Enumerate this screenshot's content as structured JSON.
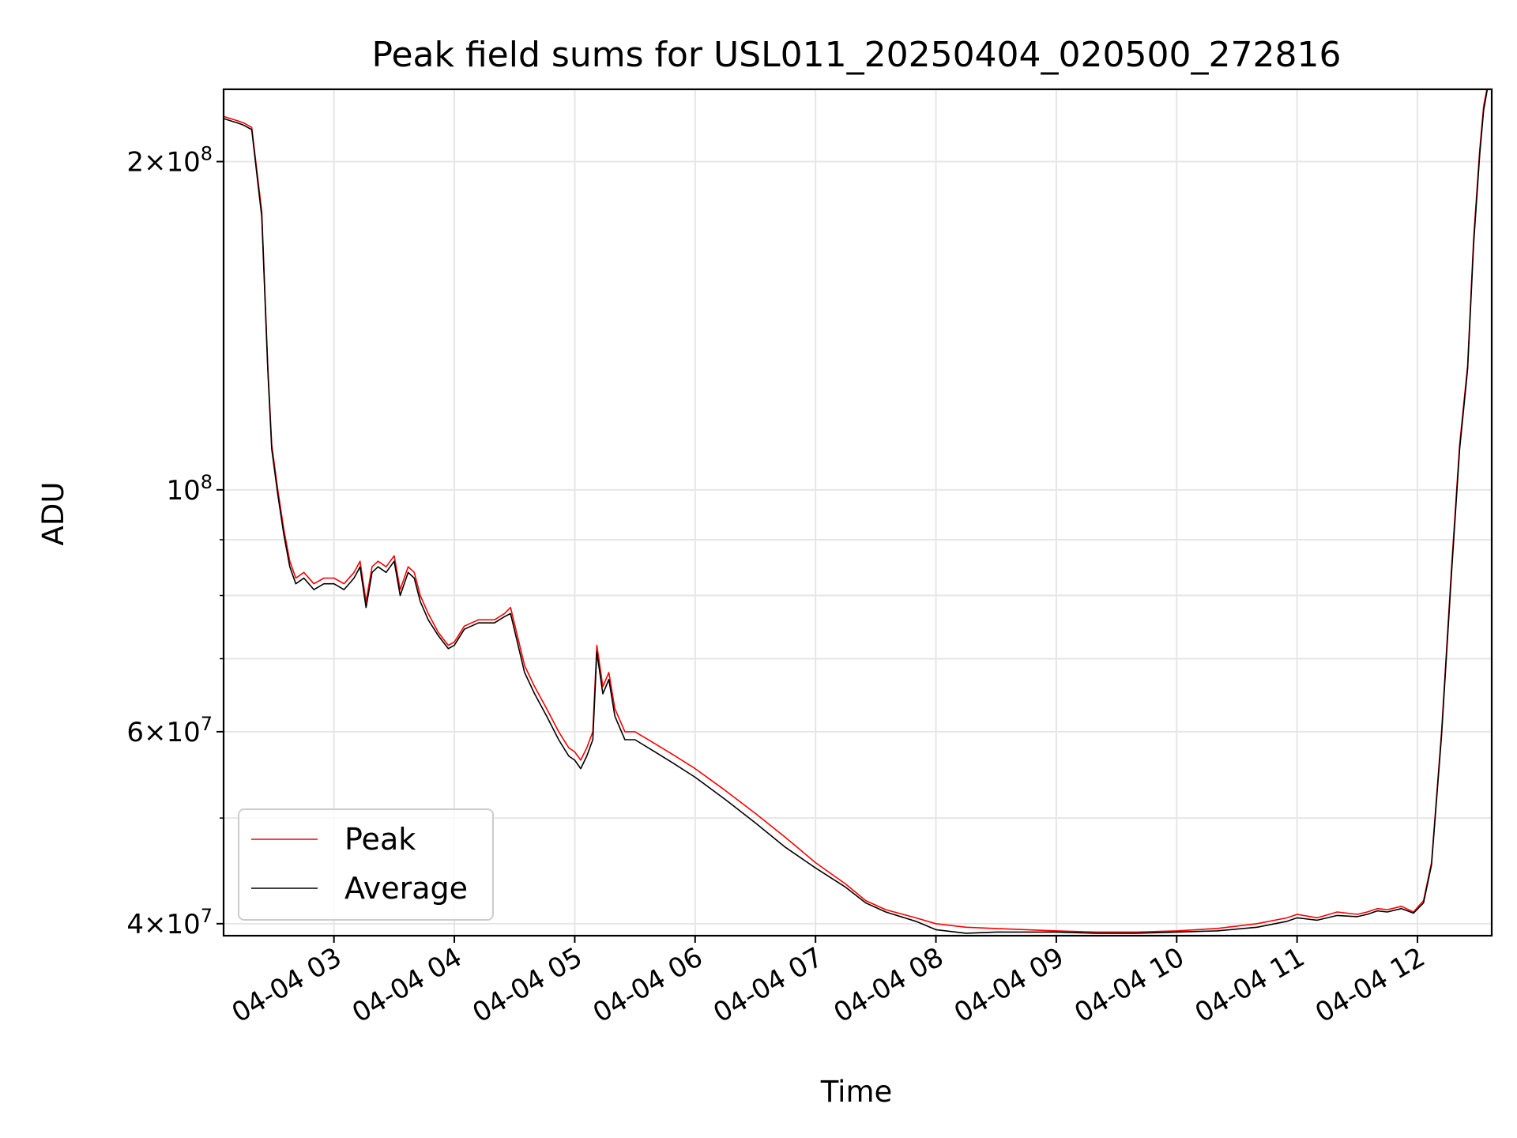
{
  "chart_data": {
    "type": "line",
    "title": "Peak field sums for USL011_20250404_020500_272816",
    "xlabel": "Time",
    "ylabel": "ADU",
    "yscale": "log",
    "grid": true,
    "legend_placement": "lower-left",
    "xlim": [
      "2025-04-04 02:05",
      "2025-04-04 12:37"
    ],
    "ylim": [
      39000000,
      233000000
    ],
    "x_ticks": [
      {
        "t": "2025-04-04 03:00",
        "label": "04-04 03"
      },
      {
        "t": "2025-04-04 04:00",
        "label": "04-04 04"
      },
      {
        "t": "2025-04-04 05:00",
        "label": "04-04 05"
      },
      {
        "t": "2025-04-04 06:00",
        "label": "04-04 06"
      },
      {
        "t": "2025-04-04 07:00",
        "label": "04-04 07"
      },
      {
        "t": "2025-04-04 08:00",
        "label": "04-04 08"
      },
      {
        "t": "2025-04-04 09:00",
        "label": "04-04 09"
      },
      {
        "t": "2025-04-04 10:00",
        "label": "04-04 10"
      },
      {
        "t": "2025-04-04 11:00",
        "label": "04-04 11"
      },
      {
        "t": "2025-04-04 12:00",
        "label": "04-04 12"
      }
    ],
    "y_ticks": [
      {
        "v": 40000000,
        "mant": "4",
        "exp": "7"
      },
      {
        "v": 60000000,
        "mant": "6",
        "exp": "7"
      },
      {
        "v": 100000000,
        "mant": "",
        "exp": "8"
      },
      {
        "v": 200000000,
        "mant": "2",
        "exp": "8"
      }
    ],
    "y_minor_ticks": [
      50000000,
      70000000,
      80000000,
      90000000
    ],
    "series": [
      {
        "name": "Peak",
        "color": "#ff0000",
        "x": [
          "2025-04-04 02:05",
          "2025-04-04 02:12",
          "2025-04-04 02:15",
          "2025-04-04 02:19",
          "2025-04-04 02:24",
          "2025-04-04 02:27",
          "2025-04-04 02:29",
          "2025-04-04 02:32",
          "2025-04-04 02:35",
          "2025-04-04 02:38",
          "2025-04-04 02:41",
          "2025-04-04 02:45",
          "2025-04-04 02:50",
          "2025-04-04 02:55",
          "2025-04-04 03:00",
          "2025-04-04 03:05",
          "2025-04-04 03:10",
          "2025-04-04 03:13",
          "2025-04-04 03:16",
          "2025-04-04 03:19",
          "2025-04-04 03:22",
          "2025-04-04 03:26",
          "2025-04-04 03:30",
          "2025-04-04 03:33",
          "2025-04-04 03:37",
          "2025-04-04 03:40",
          "2025-04-04 03:43",
          "2025-04-04 03:47",
          "2025-04-04 03:52",
          "2025-04-04 03:57",
          "2025-04-04 04:00",
          "2025-04-04 04:05",
          "2025-04-04 04:12",
          "2025-04-04 04:20",
          "2025-04-04 04:25",
          "2025-04-04 04:28",
          "2025-04-04 04:31",
          "2025-04-04 04:35",
          "2025-04-04 04:40",
          "2025-04-04 04:46",
          "2025-04-04 04:52",
          "2025-04-04 04:57",
          "2025-04-04 05:00",
          "2025-04-04 05:03",
          "2025-04-04 05:06",
          "2025-04-04 05:09",
          "2025-04-04 05:11",
          "2025-04-04 05:14",
          "2025-04-04 05:17",
          "2025-04-04 05:20",
          "2025-04-04 05:25",
          "2025-04-04 05:30",
          "2025-04-04 05:40",
          "2025-04-04 05:50",
          "2025-04-04 06:00",
          "2025-04-04 06:15",
          "2025-04-04 06:30",
          "2025-04-04 06:45",
          "2025-04-04 07:00",
          "2025-04-04 07:15",
          "2025-04-04 07:25",
          "2025-04-04 07:35",
          "2025-04-04 07:50",
          "2025-04-04 08:00",
          "2025-04-04 08:15",
          "2025-04-04 08:30",
          "2025-04-04 08:45",
          "2025-04-04 09:00",
          "2025-04-04 09:20",
          "2025-04-04 09:40",
          "2025-04-04 10:00",
          "2025-04-04 10:20",
          "2025-04-04 10:40",
          "2025-04-04 10:55",
          "2025-04-04 11:00",
          "2025-04-04 11:10",
          "2025-04-04 11:20",
          "2025-04-04 11:30",
          "2025-04-04 11:35",
          "2025-04-04 11:40",
          "2025-04-04 11:45",
          "2025-04-04 11:52",
          "2025-04-04 11:58",
          "2025-04-04 12:03",
          "2025-04-04 12:07",
          "2025-04-04 12:12",
          "2025-04-04 12:17",
          "2025-04-04 12:21",
          "2025-04-04 12:25",
          "2025-04-04 12:28",
          "2025-04-04 12:31",
          "2025-04-04 12:33",
          "2025-04-04 12:35"
        ],
        "values": [
          220000000,
          218000000,
          217000000,
          215000000,
          180000000,
          130000000,
          110000000,
          100000000,
          92000000,
          86000000,
          83000000,
          84000000,
          82000000,
          83000000,
          83000000,
          82000000,
          84000000,
          86000000,
          79000000,
          85000000,
          86000000,
          85000000,
          87000000,
          81000000,
          85000000,
          84000000,
          80000000,
          77000000,
          74000000,
          72000000,
          72500000,
          75000000,
          76000000,
          76000000,
          77000000,
          78000000,
          74000000,
          69000000,
          66000000,
          63000000,
          60000000,
          58000000,
          57500000,
          56500000,
          58000000,
          60000000,
          72000000,
          66000000,
          68000000,
          63000000,
          60000000,
          60000000,
          58500000,
          57000000,
          55500000,
          53000000,
          50500000,
          48000000,
          45500000,
          43500000,
          42000000,
          41200000,
          40500000,
          40000000,
          39700000,
          39600000,
          39500000,
          39400000,
          39300000,
          39300000,
          39400000,
          39600000,
          40000000,
          40500000,
          40800000,
          40500000,
          41000000,
          40800000,
          41000000,
          41300000,
          41200000,
          41500000,
          41000000,
          42000000,
          45500000,
          60000000,
          85000000,
          110000000,
          130000000,
          170000000,
          205000000,
          225000000,
          235000000
        ]
      },
      {
        "name": "Average",
        "color": "#000000",
        "x": [
          "2025-04-04 02:05",
          "2025-04-04 02:12",
          "2025-04-04 02:15",
          "2025-04-04 02:19",
          "2025-04-04 02:24",
          "2025-04-04 02:27",
          "2025-04-04 02:29",
          "2025-04-04 02:32",
          "2025-04-04 02:35",
          "2025-04-04 02:38",
          "2025-04-04 02:41",
          "2025-04-04 02:45",
          "2025-04-04 02:50",
          "2025-04-04 02:55",
          "2025-04-04 03:00",
          "2025-04-04 03:05",
          "2025-04-04 03:10",
          "2025-04-04 03:13",
          "2025-04-04 03:16",
          "2025-04-04 03:19",
          "2025-04-04 03:22",
          "2025-04-04 03:26",
          "2025-04-04 03:30",
          "2025-04-04 03:33",
          "2025-04-04 03:37",
          "2025-04-04 03:40",
          "2025-04-04 03:43",
          "2025-04-04 03:47",
          "2025-04-04 03:52",
          "2025-04-04 03:57",
          "2025-04-04 04:00",
          "2025-04-04 04:05",
          "2025-04-04 04:12",
          "2025-04-04 04:20",
          "2025-04-04 04:25",
          "2025-04-04 04:28",
          "2025-04-04 04:31",
          "2025-04-04 04:35",
          "2025-04-04 04:40",
          "2025-04-04 04:46",
          "2025-04-04 04:52",
          "2025-04-04 04:57",
          "2025-04-04 05:00",
          "2025-04-04 05:03",
          "2025-04-04 05:06",
          "2025-04-04 05:09",
          "2025-04-04 05:11",
          "2025-04-04 05:14",
          "2025-04-04 05:17",
          "2025-04-04 05:20",
          "2025-04-04 05:25",
          "2025-04-04 05:30",
          "2025-04-04 05:40",
          "2025-04-04 05:50",
          "2025-04-04 06:00",
          "2025-04-04 06:15",
          "2025-04-04 06:30",
          "2025-04-04 06:45",
          "2025-04-04 07:00",
          "2025-04-04 07:15",
          "2025-04-04 07:25",
          "2025-04-04 07:35",
          "2025-04-04 07:50",
          "2025-04-04 08:00",
          "2025-04-04 08:15",
          "2025-04-04 08:30",
          "2025-04-04 08:45",
          "2025-04-04 09:00",
          "2025-04-04 09:20",
          "2025-04-04 09:40",
          "2025-04-04 10:00",
          "2025-04-04 10:20",
          "2025-04-04 10:40",
          "2025-04-04 10:55",
          "2025-04-04 11:00",
          "2025-04-04 11:10",
          "2025-04-04 11:20",
          "2025-04-04 11:30",
          "2025-04-04 11:35",
          "2025-04-04 11:40",
          "2025-04-04 11:45",
          "2025-04-04 11:52",
          "2025-04-04 11:58",
          "2025-04-04 12:03",
          "2025-04-04 12:07",
          "2025-04-04 12:12",
          "2025-04-04 12:17",
          "2025-04-04 12:21",
          "2025-04-04 12:25",
          "2025-04-04 12:28",
          "2025-04-04 12:31",
          "2025-04-04 12:33",
          "2025-04-04 12:35"
        ],
        "values": [
          219000000,
          217000000,
          216000000,
          214000000,
          178000000,
          129000000,
          109000000,
          99000000,
          91000000,
          85000000,
          82000000,
          83000000,
          81000000,
          82000000,
          82000000,
          81000000,
          83000000,
          85000000,
          78000000,
          84000000,
          85000000,
          84000000,
          86000000,
          80000000,
          84000000,
          83000000,
          79000000,
          76000000,
          73500000,
          71500000,
          72000000,
          74500000,
          75500000,
          75500000,
          76500000,
          77000000,
          73000000,
          68000000,
          65000000,
          62000000,
          59000000,
          57000000,
          56500000,
          55500000,
          57000000,
          59000000,
          71000000,
          65000000,
          67000000,
          62000000,
          59000000,
          59000000,
          57500000,
          56000000,
          54500000,
          52000000,
          49500000,
          47000000,
          45000000,
          43200000,
          41800000,
          41000000,
          40200000,
          39500000,
          39200000,
          39300000,
          39300000,
          39300000,
          39200000,
          39200000,
          39300000,
          39400000,
          39700000,
          40200000,
          40500000,
          40300000,
          40700000,
          40600000,
          40800000,
          41100000,
          41000000,
          41300000,
          40900000,
          41800000,
          45300000,
          59500000,
          84000000,
          109000000,
          129000000,
          168000000,
          203000000,
          223000000,
          234000000
        ]
      }
    ]
  }
}
